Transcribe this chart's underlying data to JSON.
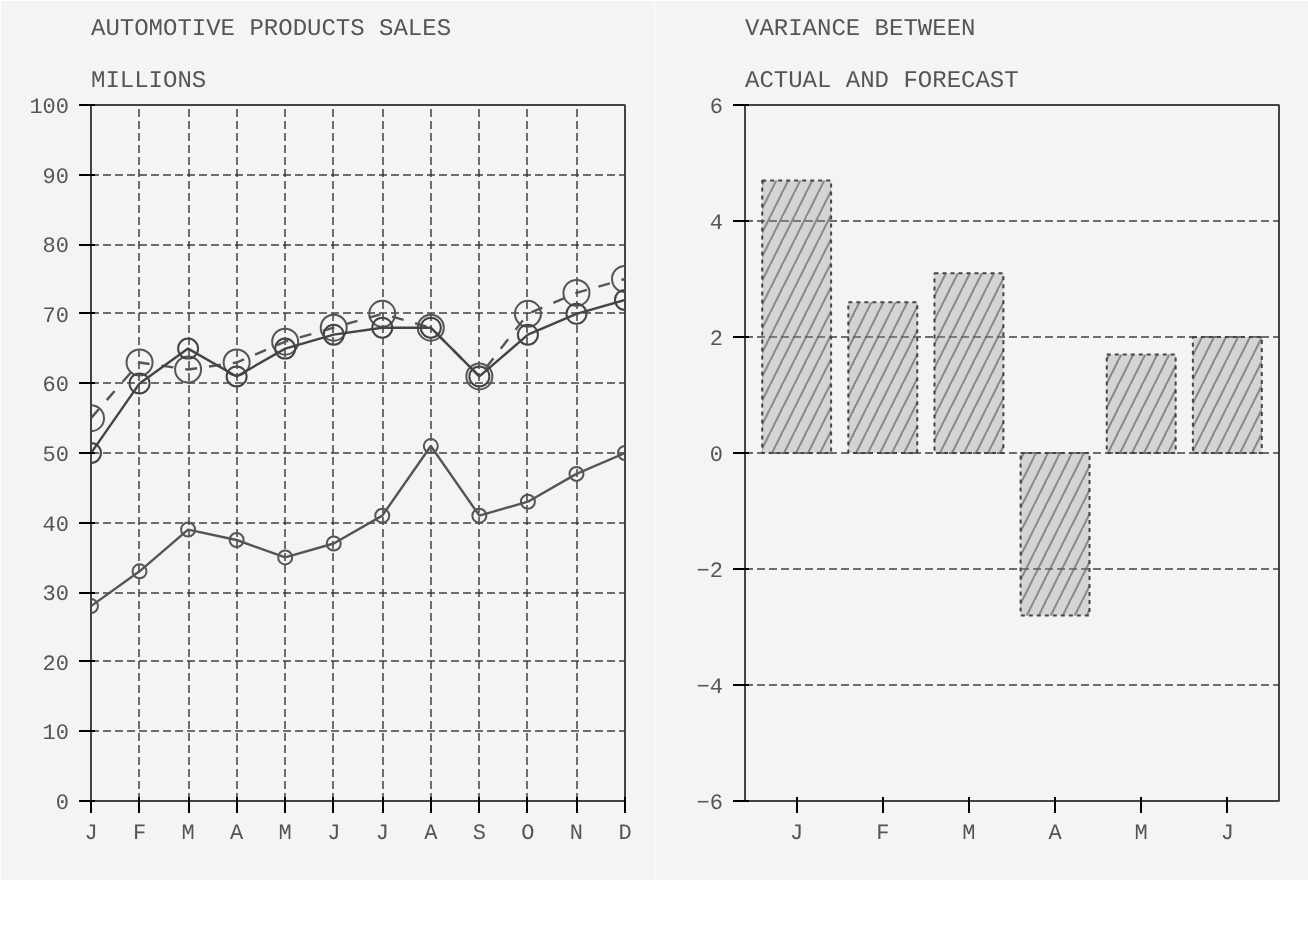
{
  "chart_data": [
    {
      "type": "line",
      "title": "AUTOMOTIVE PRODUCTS SALES",
      "subtitle": "MILLIONS",
      "categories": [
        "J",
        "F",
        "M",
        "A",
        "M",
        "J",
        "J",
        "A",
        "S",
        "O",
        "N",
        "D"
      ],
      "series": [
        {
          "color": "#555555",
          "line_style": "dashed",
          "values": [
            55,
            63,
            62,
            63,
            66,
            68,
            70,
            68,
            61,
            70,
            73,
            75
          ]
        },
        {
          "color": "#444444",
          "line_style": "solid",
          "values": [
            50,
            60,
            65,
            61,
            65,
            67,
            68,
            68,
            61,
            67,
            70,
            72
          ]
        },
        {
          "color": "#555555",
          "line_style": "solid",
          "values": [
            28,
            33,
            39,
            37.5,
            35,
            37,
            41,
            51,
            41,
            43,
            47,
            50
          ]
        }
      ],
      "ylim": [
        0,
        100
      ],
      "yticks": [
        0,
        10,
        20,
        30,
        40,
        50,
        60,
        70,
        80,
        90,
        100
      ],
      "grid": true,
      "marker": "circle"
    },
    {
      "type": "bar",
      "title": "VARIANCE BETWEEN",
      "subtitle": "ACTUAL AND FORECAST",
      "categories": [
        "J",
        "F",
        "M",
        "A",
        "M",
        "J"
      ],
      "values": [
        4.7,
        2.6,
        3.1,
        -2.8,
        1.7,
        2.0
      ],
      "color": "#999999",
      "ylim": [
        -6,
        6
      ],
      "yticks": [
        -6,
        -4,
        -2,
        0,
        2,
        4,
        6
      ],
      "grid": "y"
    }
  ]
}
